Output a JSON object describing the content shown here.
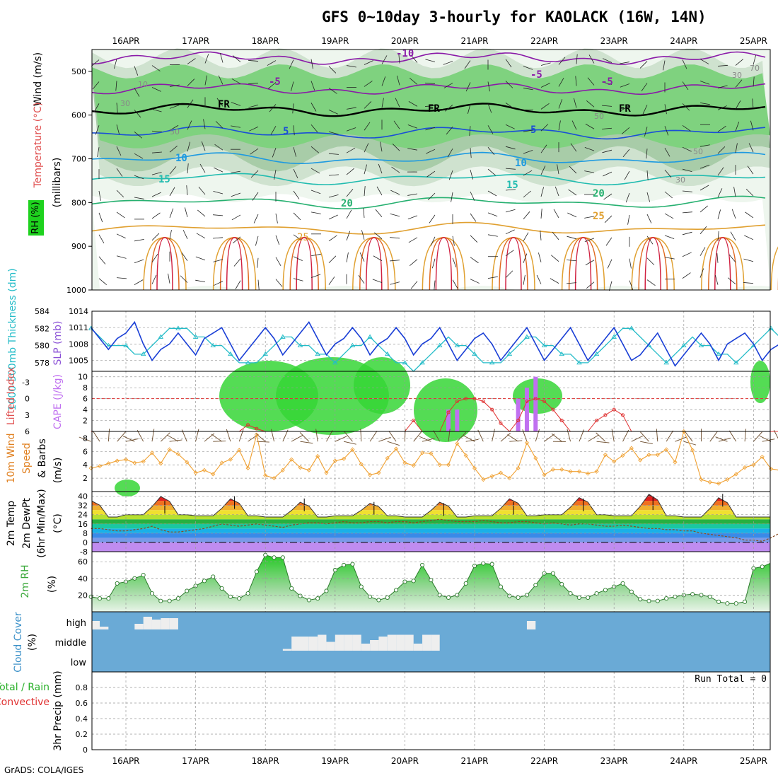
{
  "title": "GFS 0~10day 3-hourly for KAOLACK (16W, 14N)",
  "credit": "GrADS: COLA/IGES",
  "dates": [
    "16APR",
    "17APR",
    "18APR",
    "19APR",
    "20APR",
    "21APR",
    "22APR",
    "23APR",
    "24APR",
    "25APR"
  ],
  "colors": {
    "rh_green": "#1ed21e",
    "slp": "#1a3fd6",
    "thickness": "#24bcc8",
    "lifted_index": "#e03030",
    "cape": "#c070f0",
    "wind": "#f0a030",
    "rh2m": "#3aa83a",
    "cloud": "#6aaad6",
    "precip_conv": "#e03030"
  },
  "panels": {
    "upper": {
      "ylabel_parts": [
        "Wind (m/s)",
        "Temperature (°C)",
        "RH (%)",
        "(millibars)"
      ],
      "yticks": [
        500,
        600,
        700,
        800,
        900,
        1000
      ],
      "temp_labels": [
        "-10",
        "-5",
        "-5",
        "-5",
        "5",
        "5",
        "10",
        "10",
        "15",
        "15",
        "20",
        "20",
        "25",
        "25",
        "FR",
        "FR",
        "FR"
      ],
      "rh_labels": [
        "10",
        "30",
        "50",
        "50",
        "30",
        "50",
        "30",
        "70"
      ]
    },
    "slp": {
      "ylabel_left": "1000-500mb Thickness (dm)",
      "ylabel_right": "SLP (mb)",
      "yticks_left": [
        "584",
        "582",
        "580",
        "578"
      ],
      "yticks_right": [
        "1014",
        "1011",
        "1008",
        "1005"
      ]
    },
    "cape": {
      "ylabel_left": "Lifted Index",
      "ylabel_right": "CAPE (J/kg)",
      "yticks_left": [
        "-3",
        "0",
        "3",
        "6"
      ],
      "yticks_right": [
        "10",
        "8",
        "6",
        "4",
        "2"
      ]
    },
    "wind": {
      "ylabel_parts": [
        "10m Wind",
        "Speed",
        "(m/s)",
        "& Barbs"
      ],
      "yticks": [
        "8",
        "6",
        "4",
        "2"
      ]
    },
    "temp": {
      "ylabel_parts": [
        "2m Temp",
        "2m DewPt",
        "(6hr Min/Max)",
        "(°C)"
      ],
      "yticks": [
        "40",
        "32",
        "24",
        "16",
        "8",
        "0",
        "-8"
      ]
    },
    "rh": {
      "ylabel_parts": [
        "2m RH",
        "(%)"
      ],
      "yticks": [
        "60",
        "40",
        "20"
      ]
    },
    "cloud": {
      "ylabel_parts": [
        "Cloud Cover",
        "(%)"
      ],
      "levels": [
        "high",
        "middle",
        "low"
      ]
    },
    "precip": {
      "ylabel_parts": [
        "Total / Rain",
        "Convective",
        "3hr Precip (mm)"
      ],
      "yticks": [
        "0.8",
        "0.6",
        "0.4",
        "0.2",
        "0"
      ],
      "run_total": "Run Total = 0"
    }
  },
  "chart_data": [
    {
      "type": "line",
      "panel": "Sea-level pressure and 1000-500mb thickness",
      "x_unit": "3-hourly steps from 15 Apr 12Z",
      "series": [
        {
          "name": "SLP (mb)",
          "axis": "right",
          "ylim": [
            1003,
            1014
          ],
          "values": [
            1011,
            1009,
            1007,
            1009,
            1010,
            1012,
            1008,
            1005,
            1007,
            1008,
            1010,
            1008,
            1006,
            1009,
            1010,
            1011,
            1008,
            1005,
            1007,
            1009,
            1011,
            1009,
            1006,
            1008,
            1010,
            1012,
            1009,
            1006,
            1008,
            1009,
            1011,
            1009,
            1006,
            1008,
            1009,
            1011,
            1009,
            1006,
            1008,
            1009,
            1011,
            1008,
            1005,
            1007,
            1009,
            1010,
            1008,
            1005,
            1007,
            1009,
            1011,
            1008,
            1005,
            1007,
            1009,
            1011,
            1008,
            1005,
            1007,
            1009,
            1011,
            1008,
            1005,
            1006,
            1008,
            1010,
            1007,
            1004,
            1006,
            1008,
            1010,
            1008,
            1005,
            1008,
            1009,
            1010,
            1008,
            1005,
            1007,
            1008,
            1010
          ]
        },
        {
          "name": "1000-500mb Thickness (dm)",
          "axis": "left",
          "ylim": [
            577,
            584
          ],
          "values": [
            582,
            581,
            580,
            580,
            580,
            579,
            579,
            580,
            581,
            582,
            582,
            582,
            581,
            581,
            580,
            580,
            579,
            578,
            578,
            578,
            579,
            580,
            581,
            581,
            580,
            580,
            579,
            579,
            578,
            579,
            580,
            580,
            581,
            580,
            579,
            578,
            578,
            577,
            578,
            579,
            580,
            581,
            580,
            580,
            579,
            578,
            578,
            578,
            579,
            580,
            581,
            581,
            580,
            580,
            579,
            579,
            578,
            578,
            579,
            580,
            581,
            582,
            582,
            581,
            580,
            579,
            578,
            579,
            580,
            581,
            580,
            580,
            579,
            579,
            578,
            579,
            580,
            581,
            582,
            581,
            578
          ]
        }
      ]
    },
    {
      "type": "bar",
      "panel": "Lifted index and CAPE",
      "series": [
        {
          "name": "CAPE (J/kg)",
          "axis": "right",
          "ylim": [
            0,
            11
          ],
          "points": [
            [
              41,
              4
            ],
            [
              42,
              4
            ],
            [
              49,
              6
            ],
            [
              50,
              8
            ],
            [
              51,
              10
            ]
          ]
        },
        {
          "name": "Lifted Index",
          "axis": "left",
          "ylim": [
            6,
            -5
          ],
          "values": [
            6,
            6,
            6,
            6,
            6,
            6,
            6,
            6,
            6,
            6,
            6,
            6,
            6,
            6,
            6,
            6,
            6,
            6,
            4.8,
            5.5,
            6,
            6,
            6,
            6,
            6,
            6,
            6,
            6,
            6,
            6,
            6,
            6,
            6,
            6,
            6,
            6,
            6,
            4,
            6,
            6,
            6,
            2.5,
            0.5,
            0,
            0,
            0.5,
            2,
            4.5,
            6,
            4,
            0.5,
            0,
            0.5,
            2,
            4,
            6,
            6,
            6,
            4,
            3,
            2,
            3,
            6,
            6,
            6,
            6,
            6,
            6,
            6,
            6,
            6,
            6,
            6,
            6,
            6,
            6,
            6,
            6,
            6,
            6,
            6
          ]
        }
      ]
    },
    {
      "type": "line",
      "panel": "10m wind speed",
      "ylim": [
        0,
        9
      ],
      "series": [
        {
          "name": "Speed (m/s)",
          "values": [
            3.5,
            3.8,
            4.2,
            4.6,
            4.8,
            4.3,
            4.5,
            5.8,
            4.2,
            6.3,
            5.6,
            4.4,
            2.8,
            3.2,
            2.6,
            4.3,
            4.8,
            6.2,
            3.5,
            8.5,
            2.4,
            2.0,
            3.2,
            4.8,
            3.6,
            3.2,
            5.3,
            2.8,
            4.6,
            4.9,
            6.3,
            4.1,
            2.5,
            2.8,
            5.0,
            6.4,
            4.3,
            3.9,
            5.8,
            5.7,
            4.0,
            4.0,
            7.2,
            5.4,
            3.5,
            1.8,
            2.3,
            2.8,
            2.0,
            3.5,
            7.3,
            5.0,
            2.5,
            3.3,
            3.3,
            3.0,
            3.0,
            2.7,
            3.0,
            5.5,
            4.5,
            5.4,
            6.5,
            4.7,
            5.5,
            5.5,
            6.3,
            4.4,
            9.0,
            6.2,
            1.8,
            1.4,
            1.2,
            1.8,
            2.6,
            3.6,
            4.0,
            5.2,
            3.4,
            3.2,
            2.8
          ]
        }
      ]
    },
    {
      "type": "area",
      "panel": "2m temperature and dewpoint",
      "ylim": [
        -8,
        44
      ],
      "series": [
        {
          "name": "2m Temp (°C)",
          "daily_max": [
            36,
            40,
            38,
            35,
            34,
            35,
            38,
            39,
            42,
            39
          ],
          "daily_min": [
            22,
            24,
            23,
            22,
            23,
            22,
            23,
            24,
            23,
            22
          ]
        },
        {
          "name": "2m DewPt (°C)",
          "values": [
            12,
            12,
            11,
            10,
            10,
            11,
            12,
            14,
            11,
            9,
            9,
            10,
            11,
            12,
            14,
            16,
            15,
            14,
            15,
            16,
            15,
            14,
            13,
            15,
            16,
            17,
            17,
            16,
            17,
            18,
            17,
            17,
            18,
            18,
            17,
            18,
            18,
            17,
            18,
            19,
            20,
            19,
            18,
            18,
            18,
            19,
            18,
            17,
            17,
            18,
            18,
            17,
            16,
            17,
            16,
            15,
            16,
            16,
            15,
            14,
            14,
            15,
            14,
            13,
            12,
            12,
            11,
            11,
            10,
            10,
            8,
            7,
            6,
            5,
            4,
            2,
            2,
            1,
            4,
            8,
            10
          ]
        }
      ]
    },
    {
      "type": "area",
      "panel": "2m relative humidity",
      "ylim": [
        0,
        72
      ],
      "series": [
        {
          "name": "2m RH (%)",
          "values": [
            18,
            16,
            16,
            34,
            36,
            40,
            44,
            22,
            13,
            13,
            16,
            25,
            31,
            37,
            42,
            28,
            18,
            16,
            22,
            48,
            68,
            65,
            65,
            28,
            19,
            14,
            16,
            25,
            50,
            56,
            57,
            30,
            18,
            14,
            17,
            26,
            36,
            37,
            56,
            38,
            20,
            17,
            20,
            34,
            55,
            58,
            57,
            30,
            19,
            17,
            20,
            32,
            46,
            46,
            33,
            22,
            17,
            17,
            22,
            26,
            30,
            34,
            24,
            15,
            13,
            13,
            16,
            18,
            20,
            21,
            20,
            18,
            12,
            10,
            10,
            12,
            52,
            54,
            58,
            64,
            70
          ]
        }
      ]
    },
    {
      "type": "area",
      "panel": "Cloud cover",
      "ylim": [
        0,
        100
      ],
      "series": [
        {
          "name": "high",
          "values": [
            60,
            20,
            0,
            0,
            0,
            40,
            90,
            70,
            80,
            80,
            0,
            0,
            0,
            0,
            0,
            0,
            0,
            0,
            0,
            0,
            0,
            0,
            0,
            0,
            0,
            0,
            0,
            0,
            0,
            0,
            0,
            0,
            0,
            0,
            0,
            0,
            0,
            0,
            0,
            0,
            0,
            0,
            0,
            0,
            0,
            0,
            0,
            0,
            0,
            0,
            60,
            0,
            0,
            0,
            0,
            0,
            0,
            0,
            0,
            0,
            0,
            0,
            0,
            0,
            0,
            0,
            0,
            0,
            0,
            0,
            0,
            0,
            0,
            0,
            0,
            0,
            0,
            0,
            0,
            0,
            0
          ]
        },
        {
          "name": "middle",
          "values": [
            0,
            0,
            0,
            0,
            0,
            0,
            0,
            0,
            0,
            0,
            0,
            0,
            0,
            0,
            0,
            0,
            0,
            0,
            0,
            0,
            0,
            0,
            10,
            80,
            80,
            80,
            90,
            50,
            90,
            90,
            90,
            40,
            60,
            80,
            90,
            90,
            90,
            40,
            90,
            90,
            0,
            0,
            0,
            0,
            0,
            0,
            0,
            0,
            0,
            0,
            0,
            0,
            0,
            0,
            0,
            0,
            0,
            0,
            0,
            0,
            0,
            0,
            0,
            0,
            0,
            0,
            0,
            0,
            0,
            0,
            0,
            0,
            0,
            0,
            0,
            0,
            0,
            0,
            0,
            0,
            0
          ]
        },
        {
          "name": "low",
          "values": [
            0,
            0,
            0,
            0,
            0,
            0,
            0,
            0,
            0,
            0,
            0,
            0,
            0,
            0,
            0,
            0,
            0,
            0,
            0,
            0,
            0,
            0,
            0,
            0,
            0,
            0,
            0,
            0,
            0,
            0,
            0,
            0,
            0,
            0,
            0,
            0,
            0,
            0,
            0,
            0,
            0,
            0,
            0,
            0,
            0,
            0,
            0,
            0,
            0,
            0,
            0,
            0,
            0,
            0,
            0,
            0,
            0,
            0,
            0,
            0,
            0,
            0,
            0,
            0,
            0,
            0,
            0,
            0,
            0,
            0,
            0,
            0,
            0,
            0,
            0,
            0,
            0,
            0,
            0,
            0,
            0
          ]
        }
      ]
    },
    {
      "type": "bar",
      "panel": "3hr precipitation",
      "ylim": [
        0,
        1
      ],
      "series": [
        {
          "name": "Total / Rain",
          "values": [
            0
          ]
        },
        {
          "name": "Convective",
          "values": [
            0
          ]
        }
      ]
    }
  ]
}
